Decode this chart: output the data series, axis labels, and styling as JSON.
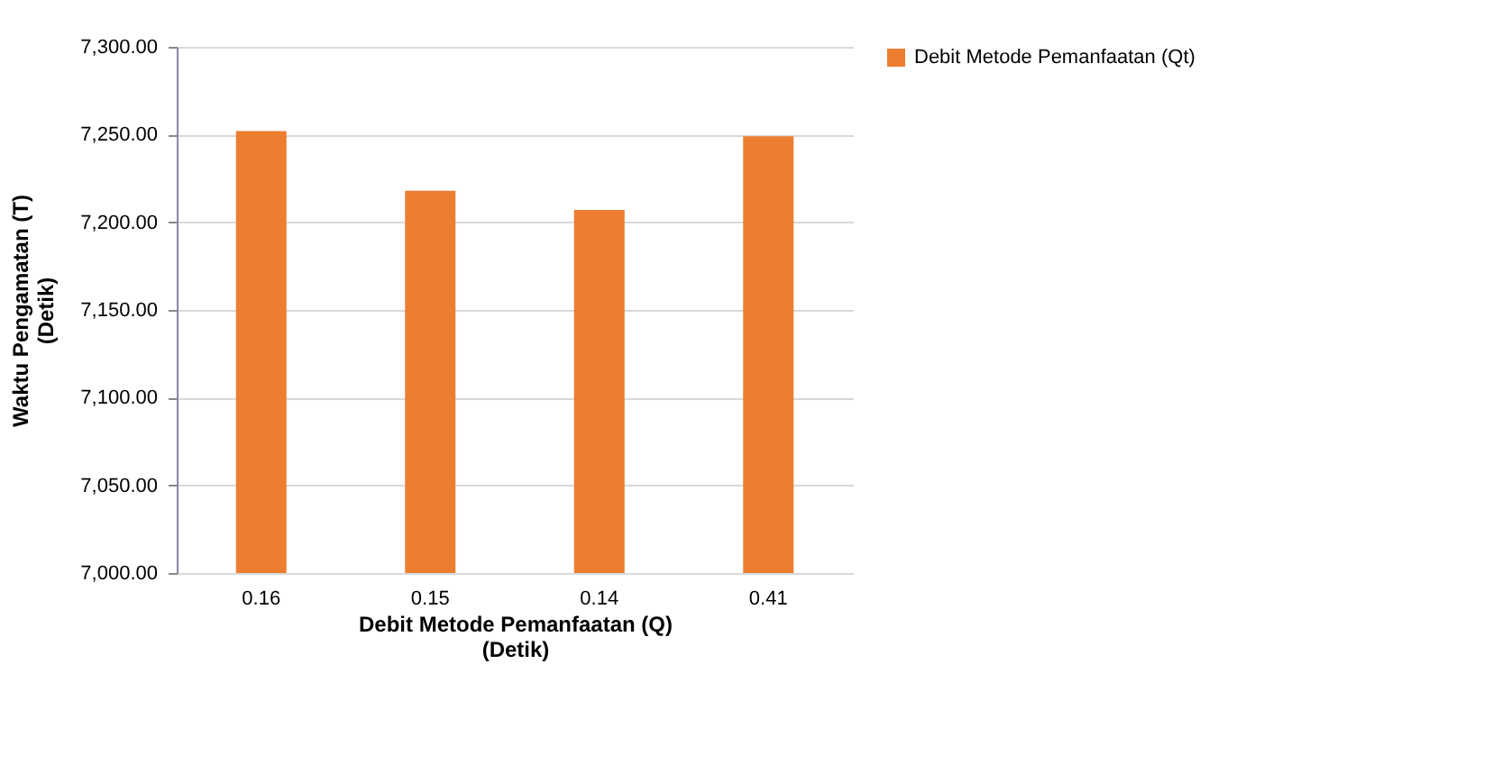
{
  "chart_data": {
    "type": "bar",
    "xlabel": "Debit Metode Pemanfaatan (Q) (Detik)",
    "ylabel": "Waktu Pengamatan (T) (Detik)",
    "categories": [
      "0.16",
      "0.15",
      "0.14",
      "0.41"
    ],
    "series": [
      {
        "name": "Debit Metode Pemanfaatan (Qt)",
        "color": "#ed7d31",
        "values": [
          7252,
          7218,
          7207,
          7249
        ]
      }
    ],
    "ylim": [
      7000,
      7300
    ],
    "yticks": [
      {
        "value": 7000,
        "label": "7,000.00"
      },
      {
        "value": 7050,
        "label": "7,050.00"
      },
      {
        "value": 7100,
        "label": "7,100.00"
      },
      {
        "value": 7150,
        "label": "7,150.00"
      },
      {
        "value": 7200,
        "label": "7,200.00"
      },
      {
        "value": 7250,
        "label": "7,250.00"
      },
      {
        "value": 7300,
        "label": "7,300.00"
      }
    ],
    "grid": "y",
    "legend": "right"
  }
}
